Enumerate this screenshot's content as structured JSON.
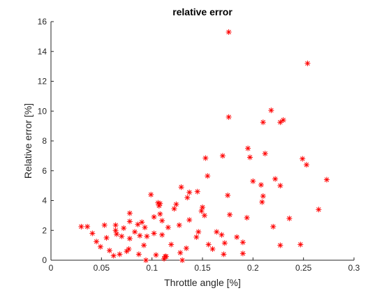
{
  "chart_data": {
    "type": "scatter",
    "title": "relative error",
    "xlabel": "Throttle angle [%]",
    "ylabel": "Relative error [%]",
    "xlim": [
      0,
      0.3
    ],
    "ylim": [
      0,
      16
    ],
    "xticks": [
      "0",
      "0.05",
      "0.1",
      "0.15",
      "0.2",
      "0.25",
      "0.3"
    ],
    "yticks": [
      "0",
      "2",
      "4",
      "6",
      "8",
      "10",
      "12",
      "14",
      "16"
    ],
    "grid": false,
    "marker": "asterisk",
    "color": "#ff0000",
    "series": [
      {
        "points": [
          [
            0.03,
            2.25
          ],
          [
            0.036,
            2.25
          ],
          [
            0.041,
            1.8
          ],
          [
            0.045,
            1.25
          ],
          [
            0.049,
            0.9
          ],
          [
            0.053,
            2.35
          ],
          [
            0.055,
            1.5
          ],
          [
            0.058,
            0.65
          ],
          [
            0.062,
            0.3
          ],
          [
            0.064,
            2.35
          ],
          [
            0.064,
            2.0
          ],
          [
            0.065,
            1.75
          ],
          [
            0.068,
            0.4
          ],
          [
            0.07,
            1.6
          ],
          [
            0.072,
            2.15
          ],
          [
            0.075,
            0.6
          ],
          [
            0.077,
            0.75
          ],
          [
            0.078,
            2.6
          ],
          [
            0.078,
            3.15
          ],
          [
            0.078,
            1.45
          ],
          [
            0.083,
            1.9
          ],
          [
            0.086,
            2.4
          ],
          [
            0.087,
            0.4
          ],
          [
            0.088,
            1.65
          ],
          [
            0.09,
            2.55
          ],
          [
            0.092,
            1.0
          ],
          [
            0.093,
            2.2
          ],
          [
            0.094,
            0.0
          ],
          [
            0.095,
            1.6
          ],
          [
            0.099,
            4.4
          ],
          [
            0.102,
            1.8
          ],
          [
            0.102,
            2.9
          ],
          [
            0.104,
            0.35
          ],
          [
            0.106,
            3.85
          ],
          [
            0.107,
            3.65
          ],
          [
            0.108,
            3.1
          ],
          [
            0.108,
            3.8
          ],
          [
            0.11,
            2.65
          ],
          [
            0.11,
            1.7
          ],
          [
            0.112,
            0.1
          ],
          [
            0.113,
            0.25
          ],
          [
            0.114,
            0.25
          ],
          [
            0.116,
            2.2
          ],
          [
            0.119,
            1.05
          ],
          [
            0.122,
            3.45
          ],
          [
            0.124,
            3.75
          ],
          [
            0.127,
            2.35
          ],
          [
            0.128,
            0.5
          ],
          [
            0.129,
            4.9
          ],
          [
            0.13,
            0.0
          ],
          [
            0.134,
            0.8
          ],
          [
            0.135,
            4.2
          ],
          [
            0.137,
            4.55
          ],
          [
            0.137,
            2.7
          ],
          [
            0.144,
            1.55
          ],
          [
            0.145,
            4.6
          ],
          [
            0.146,
            1.9
          ],
          [
            0.149,
            3.3
          ],
          [
            0.15,
            3.55
          ],
          [
            0.152,
            3.0
          ],
          [
            0.153,
            6.85
          ],
          [
            0.155,
            5.65
          ],
          [
            0.156,
            1.05
          ],
          [
            0.16,
            0.75
          ],
          [
            0.164,
            1.9
          ],
          [
            0.169,
            1.7
          ],
          [
            0.17,
            7.0
          ],
          [
            0.171,
            0.4
          ],
          [
            0.172,
            1.15
          ],
          [
            0.175,
            4.35
          ],
          [
            0.176,
            15.3
          ],
          [
            0.176,
            9.6
          ],
          [
            0.177,
            3.05
          ],
          [
            0.184,
            1.55
          ],
          [
            0.19,
            0.45
          ],
          [
            0.19,
            1.2
          ],
          [
            0.194,
            2.85
          ],
          [
            0.195,
            7.5
          ],
          [
            0.197,
            6.9
          ],
          [
            0.2,
            5.3
          ],
          [
            0.208,
            5.05
          ],
          [
            0.209,
            3.9
          ],
          [
            0.21,
            4.3
          ],
          [
            0.21,
            9.25
          ],
          [
            0.212,
            7.15
          ],
          [
            0.218,
            10.05
          ],
          [
            0.22,
            2.25
          ],
          [
            0.222,
            5.45
          ],
          [
            0.227,
            5.0
          ],
          [
            0.227,
            1.0
          ],
          [
            0.227,
            9.25
          ],
          [
            0.23,
            9.4
          ],
          [
            0.236,
            2.8
          ],
          [
            0.247,
            1.05
          ],
          [
            0.249,
            6.8
          ],
          [
            0.253,
            6.4
          ],
          [
            0.254,
            13.2
          ],
          [
            0.265,
            3.4
          ],
          [
            0.273,
            5.4
          ]
        ]
      }
    ]
  }
}
